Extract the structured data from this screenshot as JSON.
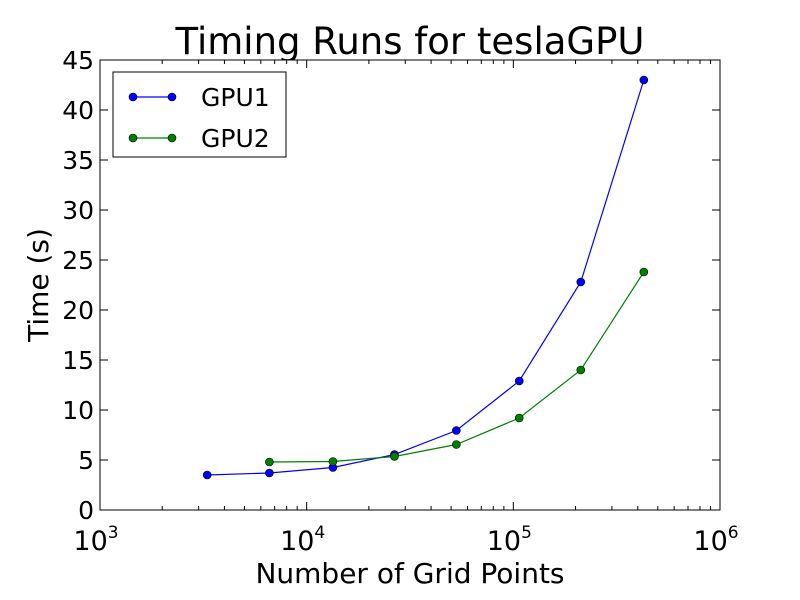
{
  "chart_data": {
    "type": "line",
    "title": "Timing Runs for teslaGPU",
    "xlabel": "Number of Grid Points",
    "ylabel": "Time (s)",
    "xscale": "log",
    "xlim": [
      1000,
      1000000
    ],
    "ylim": [
      0,
      45
    ],
    "x_ticks": [
      {
        "value": 1000,
        "base": "10",
        "exp": "3"
      },
      {
        "value": 10000,
        "base": "10",
        "exp": "4"
      },
      {
        "value": 100000,
        "base": "10",
        "exp": "5"
      },
      {
        "value": 1000000,
        "base": "10",
        "exp": "6"
      }
    ],
    "y_ticks": [
      0,
      5,
      10,
      15,
      20,
      25,
      30,
      35,
      40,
      45
    ],
    "grid": false,
    "legend_position": "top-left",
    "series": [
      {
        "name": "GPU1",
        "color": "#0000ff",
        "x": [
          3300,
          6600,
          13400,
          26600,
          53000,
          106800,
          212000,
          428000
        ],
        "y": [
          3.5,
          3.7,
          4.25,
          5.55,
          7.95,
          12.9,
          22.8,
          43.0
        ]
      },
      {
        "name": "GPU2",
        "color": "#008000",
        "x": [
          6600,
          13400,
          26600,
          53000,
          106800,
          212000,
          428000
        ],
        "y": [
          4.8,
          4.85,
          5.35,
          6.55,
          9.2,
          14.0,
          23.8
        ]
      }
    ]
  }
}
